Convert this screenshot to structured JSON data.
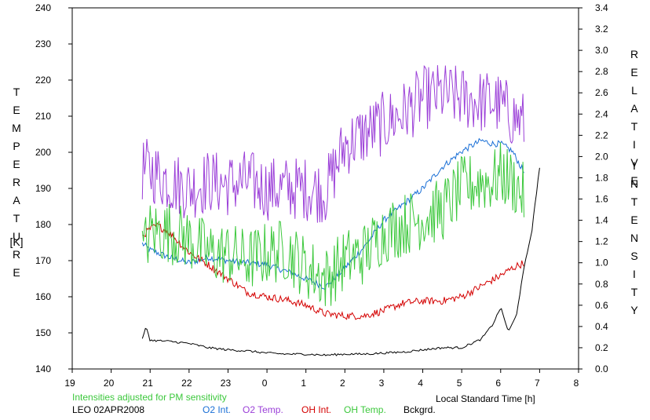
{
  "chart_data": {
    "type": "line",
    "left_axis": {
      "label_letters": [
        "T",
        "E",
        "M",
        "P",
        "E",
        "R",
        "A",
        "T",
        "U",
        "R",
        "E"
      ],
      "unit": "[K]",
      "ylim": [
        140,
        240
      ],
      "ticks": [
        140,
        150,
        160,
        170,
        180,
        190,
        200,
        210,
        220,
        230,
        240
      ]
    },
    "right_axis": {
      "label_word1": [
        "R",
        "E",
        "L",
        "A",
        "T",
        "I",
        "V",
        "E"
      ],
      "label_word2": [
        "I",
        "N",
        "T",
        "E",
        "N",
        "S",
        "I",
        "T",
        "Y"
      ],
      "ylim": [
        0.0,
        3.4
      ],
      "ticks": [
        "0.0",
        "0.2",
        "0.4",
        "0.6",
        "0.8",
        "1.0",
        "1.2",
        "1.4",
        "1.6",
        "1.8",
        "2.0",
        "2.2",
        "2.4",
        "2.6",
        "2.8",
        "3.0",
        "3.2",
        "3.4"
      ]
    },
    "x_axis": {
      "label": "Local Standard Time [h]",
      "ticks": [
        "19",
        "20",
        "21",
        "22",
        "23",
        "0",
        "1",
        "2",
        "3",
        "4",
        "5",
        "6",
        "7",
        "8"
      ],
      "xlim": [
        19,
        32
      ]
    },
    "note": "Intensities adjusted for PM sensitivity",
    "station": "LEO 02APR2008",
    "series": [
      {
        "name": "O2 Int.",
        "axis": "right",
        "color": "#1a6fd6",
        "x": [
          20.8,
          21.0,
          21.5,
          22.0,
          22.5,
          23.0,
          23.5,
          24.0,
          24.5,
          25.0,
          25.5,
          26.0,
          26.5,
          27.0,
          27.5,
          28.0,
          28.5,
          29.0,
          29.5,
          29.8,
          30.0,
          30.3,
          30.6
        ],
        "y": [
          1.18,
          1.12,
          1.05,
          1.0,
          1.05,
          1.02,
          1.0,
          0.98,
          0.92,
          0.85,
          0.77,
          0.95,
          1.15,
          1.4,
          1.55,
          1.7,
          1.9,
          2.05,
          2.15,
          2.12,
          2.12,
          2.05,
          1.85
        ]
      },
      {
        "name": "O2 Temp.",
        "axis": "left",
        "color": "#9b3fd8",
        "x": [
          20.8,
          21.0,
          21.5,
          22.0,
          22.5,
          23.0,
          23.5,
          24.0,
          24.5,
          25.0,
          25.5,
          26.0,
          26.5,
          27.0,
          27.5,
          28.0,
          28.5,
          29.0,
          29.5,
          29.8,
          30.0,
          30.3,
          30.6
        ],
        "y": [
          195,
          195,
          192,
          190,
          192,
          191,
          192,
          190,
          190,
          190,
          189,
          202,
          205,
          208,
          211,
          215,
          216,
          215,
          214,
          214,
          213,
          210,
          208
        ]
      },
      {
        "name": "OH Int.",
        "axis": "right",
        "color": "#d40000",
        "x": [
          20.8,
          21.0,
          21.2,
          21.5,
          22.0,
          22.5,
          23.0,
          23.5,
          24.0,
          24.5,
          25.0,
          25.5,
          26.0,
          26.5,
          27.0,
          27.5,
          28.0,
          28.5,
          29.0,
          29.5,
          30.0,
          30.3,
          30.6
        ],
        "y": [
          1.25,
          1.32,
          1.35,
          1.28,
          1.1,
          0.98,
          0.85,
          0.72,
          0.68,
          0.65,
          0.6,
          0.52,
          0.5,
          0.5,
          0.55,
          0.62,
          0.64,
          0.64,
          0.68,
          0.78,
          0.88,
          0.95,
          1.0
        ]
      },
      {
        "name": "OH Temp.",
        "axis": "left",
        "color": "#3cc83c",
        "x": [
          20.8,
          21.0,
          21.5,
          22.0,
          22.5,
          23.0,
          23.5,
          24.0,
          24.5,
          25.0,
          25.5,
          26.0,
          26.5,
          27.0,
          27.5,
          28.0,
          28.5,
          29.0,
          29.5,
          29.8,
          30.0,
          30.3,
          30.6
        ],
        "y": [
          172,
          178,
          178,
          176,
          172,
          172,
          170,
          172,
          173,
          168,
          165,
          170,
          172,
          178,
          180,
          182,
          184,
          190,
          192,
          192,
          194,
          192,
          188
        ]
      },
      {
        "name": "Bckgrd.",
        "axis": "right",
        "color": "#000000",
        "x": [
          20.8,
          20.9,
          21.0,
          21.5,
          22.0,
          22.5,
          23.0,
          23.5,
          24.0,
          24.5,
          25.0,
          25.5,
          26.0,
          26.5,
          27.0,
          27.5,
          28.0,
          28.5,
          29.0,
          29.5,
          29.8,
          30.0,
          30.2,
          30.4,
          30.6,
          30.8,
          31.0
        ],
        "y": [
          0.28,
          0.4,
          0.27,
          0.26,
          0.24,
          0.2,
          0.18,
          0.17,
          0.15,
          0.14,
          0.14,
          0.13,
          0.14,
          0.14,
          0.15,
          0.16,
          0.18,
          0.2,
          0.2,
          0.28,
          0.42,
          0.58,
          0.35,
          0.5,
          0.95,
          1.3,
          1.9
        ]
      }
    ]
  }
}
